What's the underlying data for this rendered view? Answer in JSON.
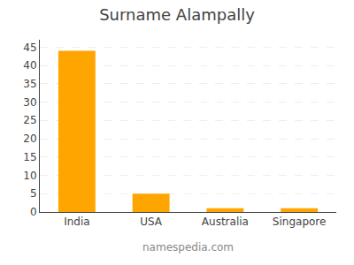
{
  "chart_data": {
    "type": "bar",
    "title": "Surname Alampally",
    "categories": [
      "India",
      "USA",
      "Australia",
      "Singapore"
    ],
    "values": [
      44,
      5,
      1,
      1
    ],
    "color": "#FFA500",
    "ylim": [
      0,
      47
    ],
    "yticks": [
      0,
      5,
      10,
      15,
      20,
      25,
      30,
      35,
      40,
      45
    ],
    "grid": true,
    "annotations": [
      "namespedia.com"
    ]
  }
}
